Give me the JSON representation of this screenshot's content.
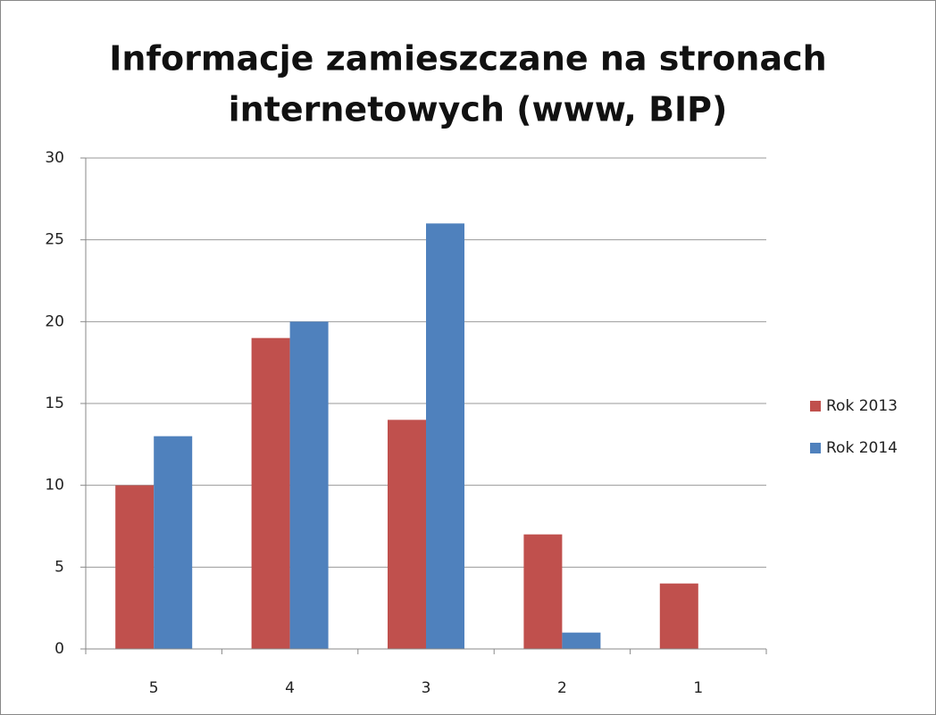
{
  "chart_data": {
    "type": "bar",
    "title": [
      "Informacje zamieszczane na stronach",
      "internetowych (www, BIP)"
    ],
    "categories": [
      "5",
      "4",
      "3",
      "2",
      "1"
    ],
    "series": [
      {
        "name": "Rok 2013",
        "color": "#c0504d",
        "values": [
          10,
          19,
          14,
          7,
          4
        ]
      },
      {
        "name": "Rok 2014",
        "color": "#4f81bd",
        "values": [
          13,
          20,
          26,
          1,
          0
        ]
      }
    ],
    "ylim": [
      0,
      30
    ],
    "yticks": [
      0,
      5,
      10,
      15,
      20,
      25,
      30
    ],
    "grid": true,
    "legend": "right"
  }
}
